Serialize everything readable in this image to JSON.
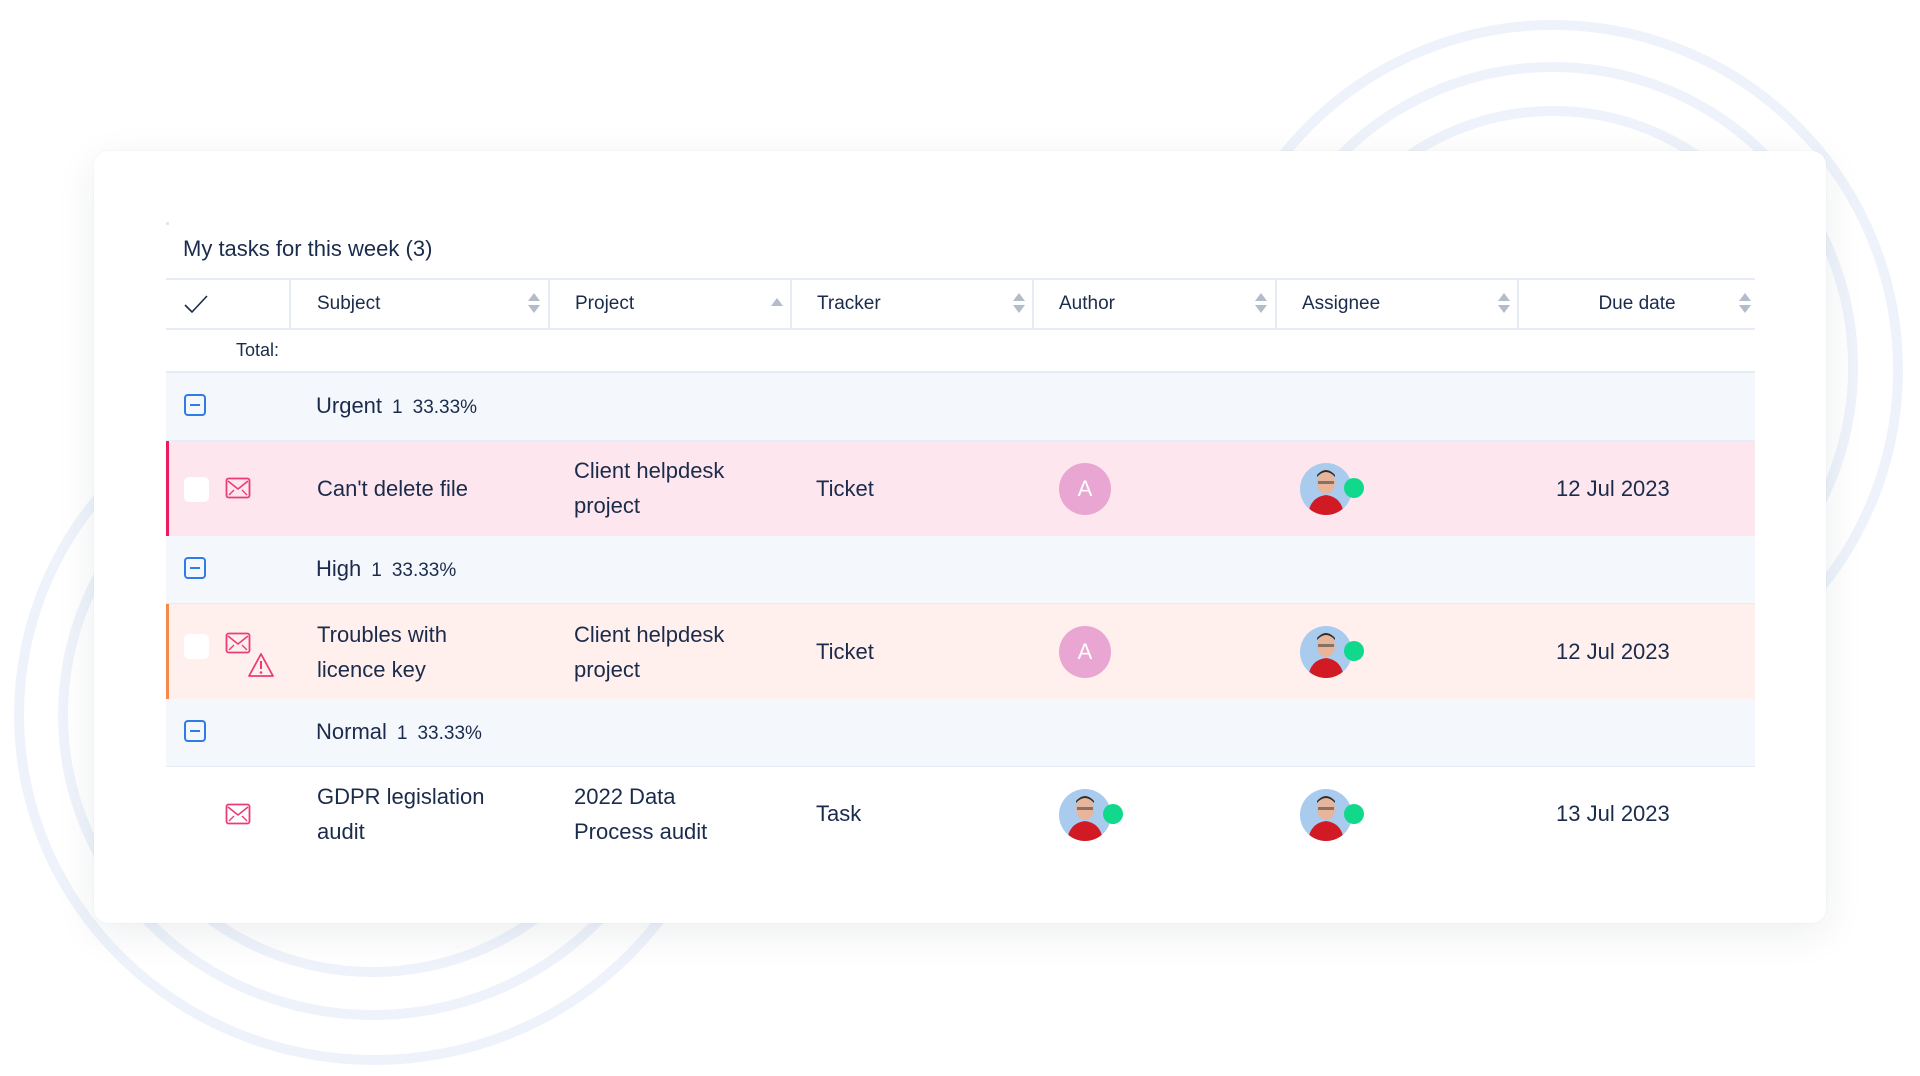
{
  "widget": {
    "title": "My tasks for this week (3)"
  },
  "table": {
    "columns": [
      {
        "label": "Subject",
        "sort": "both"
      },
      {
        "label": "Project",
        "sort": "asc"
      },
      {
        "label": "Tracker",
        "sort": "both"
      },
      {
        "label": "Author",
        "sort": "both"
      },
      {
        "label": "Assignee",
        "sort": "both"
      },
      {
        "label": "Due date",
        "sort": "both"
      }
    ],
    "select_all_icon": "checkmark-icon",
    "total_label": "Total:",
    "groups": [
      {
        "name": "Urgent",
        "count": "1",
        "percent": "33.33%",
        "accent": "#ec1b5e",
        "row_bg": "#fde6ee",
        "task": {
          "subject": [
            "Can't delete file"
          ],
          "project": [
            "Client helpdesk",
            "project"
          ],
          "tracker": "Ticket",
          "author_initial": "A",
          "due": "12 Jul 2023",
          "icon": "envelope-icon"
        }
      },
      {
        "name": "High",
        "count": "1",
        "percent": "33.33%",
        "accent": "#f48a4a",
        "row_bg": "#fff0ed",
        "task": {
          "subject": [
            "Troubles with",
            "licence key"
          ],
          "project": [
            "Client helpdesk",
            "project"
          ],
          "tracker": "Ticket",
          "author_initial": "A",
          "due": "12 Jul 2023",
          "icon": "envelope-warning-icon"
        }
      },
      {
        "name": "Normal",
        "count": "1",
        "percent": "33.33%",
        "accent": "#ffffff",
        "row_bg": "#ffffff",
        "task": {
          "subject": [
            "GDPR legislation",
            "audit"
          ],
          "project": [
            "2022 Data",
            "Process audit"
          ],
          "tracker": "Task",
          "author_initial": "",
          "due": "13 Jul 2023",
          "icon": "envelope-icon"
        }
      }
    ]
  },
  "colors": {
    "text": "#1b2b4b",
    "group_bg": "#f4f8fd",
    "collapse_blue": "#2f7be8",
    "icon_pink": "#ec3c78",
    "online_green": "#10d98b",
    "avatar_pink": "#e9a6d2"
  }
}
